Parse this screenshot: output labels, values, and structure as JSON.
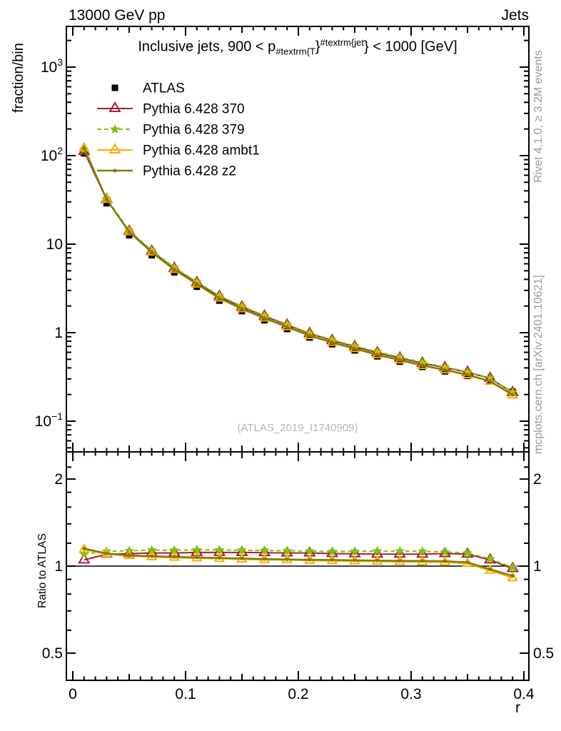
{
  "header": {
    "left": "13000 GeV pp",
    "right": "Jets"
  },
  "title": {
    "pre": "Inclusive jets, 900 < p",
    "sub": "#textrm{T",
    "brace1": "}",
    "sup": "#textrm{jet",
    "brace2": "}",
    "post": " < 1000 [GeV]"
  },
  "watermark": "(ATLAS_2019_I1740909)",
  "side_notes": {
    "rivet": "Rivet 4.1.0, ≥ 3.2M events",
    "mcplots": "mcplots.cern.ch [arXiv:2401.10621]"
  },
  "axes": {
    "xlabel": "r",
    "main_ylabel": "fraction/bin",
    "ratio_ylabel": "Ratio to ATLAS"
  },
  "chart_data": {
    "type": "line",
    "title": "Inclusive jets, 900 < pT^jet < 1000 [GeV]",
    "xlabel": "r",
    "ylabel": "fraction/bin",
    "ratio_ylabel": "Ratio to ATLAS",
    "x_range": [
      -0.006,
      0.4045
    ],
    "main_y_range": [
      0.047,
      2900
    ],
    "ratio_y_range": [
      0.4,
      2.43
    ],
    "main_ylog": true,
    "ratio_ylog": true,
    "grid": false,
    "legend_position": "top-left",
    "x": [
      0.01,
      0.03,
      0.05,
      0.07,
      0.09,
      0.11,
      0.13,
      0.15,
      0.17,
      0.19,
      0.21,
      0.23,
      0.25,
      0.27,
      0.29,
      0.31,
      0.33,
      0.35,
      0.37,
      0.39
    ],
    "xticks": {
      "major": [
        0,
        0.1,
        0.2,
        0.3,
        0.4
      ],
      "major_labels": [
        "0",
        "0.1",
        "0.2",
        "0.3",
        "0.4"
      ],
      "medium": [
        0.05,
        0.15,
        0.25,
        0.35
      ],
      "minor_step": 0.01
    },
    "main_yticks": [
      {
        "v": 1000,
        "base": "10",
        "exp": "3"
      },
      {
        "v": 100,
        "base": "10",
        "exp": "2"
      },
      {
        "v": 10,
        "base": "10",
        "exp": ""
      },
      {
        "v": 1,
        "base": "1",
        "exp": ""
      },
      {
        "v": 0.1,
        "base": "10",
        "exp": "−1"
      }
    ],
    "ratio_yticks": {
      "labeled": [
        {
          "v": 2,
          "label": "2"
        },
        {
          "v": 1,
          "label": "1"
        },
        {
          "v": 0.5,
          "label": "0.5"
        }
      ],
      "minor": [
        2.2,
        1.8,
        1.6,
        1.4,
        1.2,
        0.9,
        0.8,
        0.7,
        0.6
      ]
    },
    "atlas": {
      "name": "ATLAS",
      "color": "#000000",
      "marker": "square",
      "values": [
        106,
        29,
        12.6,
        7.5,
        4.8,
        3.3,
        2.3,
        1.75,
        1.38,
        1.1,
        0.88,
        0.74,
        0.63,
        0.54,
        0.47,
        0.41,
        0.365,
        0.325,
        0.29,
        0.215
      ]
    },
    "series": [
      {
        "name": "Pythia 6.428 370",
        "color": "#a81e34",
        "marker": "triangle",
        "dash": "",
        "width": 2,
        "ratio": [
          1.05,
          1.1,
          1.105,
          1.11,
          1.11,
          1.115,
          1.115,
          1.115,
          1.113,
          1.11,
          1.11,
          1.105,
          1.103,
          1.1,
          1.1,
          1.1,
          1.105,
          1.1,
          1.05,
          0.98
        ]
      },
      {
        "name": "Pythia 6.428 379",
        "color": "#7dc30e",
        "marker": "star",
        "dash": "6,4",
        "width": 2,
        "ratio": [
          1.1,
          1.125,
          1.13,
          1.135,
          1.135,
          1.138,
          1.137,
          1.135,
          1.132,
          1.13,
          1.127,
          1.123,
          1.125,
          1.127,
          1.127,
          1.125,
          1.12,
          1.11,
          1.06,
          0.99
        ]
      },
      {
        "name": "Pythia 6.428 ambt1",
        "color": "#ffaa00",
        "marker": "triangle",
        "dash": "",
        "width": 2,
        "ratio": [
          1.14,
          1.1,
          1.085,
          1.075,
          1.07,
          1.065,
          1.06,
          1.055,
          1.052,
          1.05,
          1.045,
          1.042,
          1.04,
          1.037,
          1.035,
          1.032,
          1.03,
          1.02,
          0.965,
          0.91
        ]
      },
      {
        "name": "Pythia 6.428 z2",
        "color": "#7d7d00",
        "marker": "dot",
        "dash": "",
        "width": 2.5,
        "ratio": [
          1.15,
          1.105,
          1.09,
          1.082,
          1.076,
          1.071,
          1.067,
          1.063,
          1.058,
          1.055,
          1.052,
          1.05,
          1.047,
          1.045,
          1.043,
          1.042,
          1.04,
          1.03,
          0.975,
          0.925
        ]
      }
    ]
  }
}
